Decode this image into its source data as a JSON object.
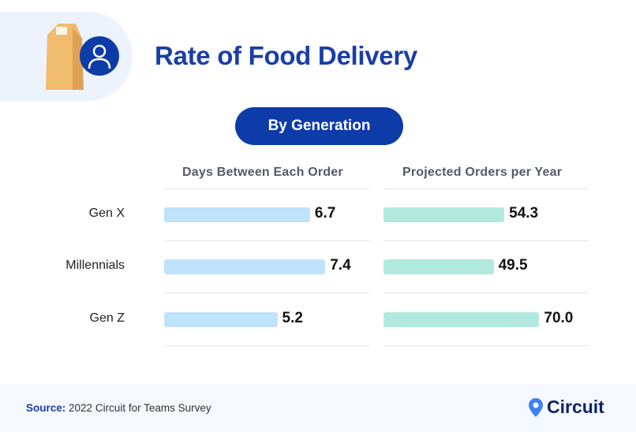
{
  "header": {
    "title": "Rate of Food Delivery",
    "subtitle_button": "By Generation"
  },
  "icons": [
    "paper-bag-icon",
    "user-icon",
    "location-pin-icon"
  ],
  "colors": {
    "title": "#1b3ea6",
    "pill": "#0d3ba8",
    "bar_days": "#bfe3fb",
    "bar_orders": "#b2e9de"
  },
  "chart_data": [
    {
      "type": "bar",
      "orientation": "horizontal",
      "title": "Days Between Each Order",
      "categories": [
        "Gen X",
        "Millennials",
        "Gen Z"
      ],
      "values": [
        6.7,
        7.4,
        5.2
      ],
      "value_labels": [
        "6.7",
        "7.4",
        "5.2"
      ],
      "xlim": [
        0,
        9.45
      ]
    },
    {
      "type": "bar",
      "orientation": "horizontal",
      "title": "Projected Orders per Year",
      "categories": [
        "Gen X",
        "Millennials",
        "Gen Z"
      ],
      "values": [
        54.3,
        49.5,
        70.0
      ],
      "value_labels": [
        "54.3",
        "49.5",
        "70.0"
      ],
      "xlim": [
        0,
        92.5
      ]
    }
  ],
  "footer": {
    "source_label": "Source:",
    "source_text": "2022 Circuit for Teams Survey",
    "logo_text": "Circuit"
  }
}
